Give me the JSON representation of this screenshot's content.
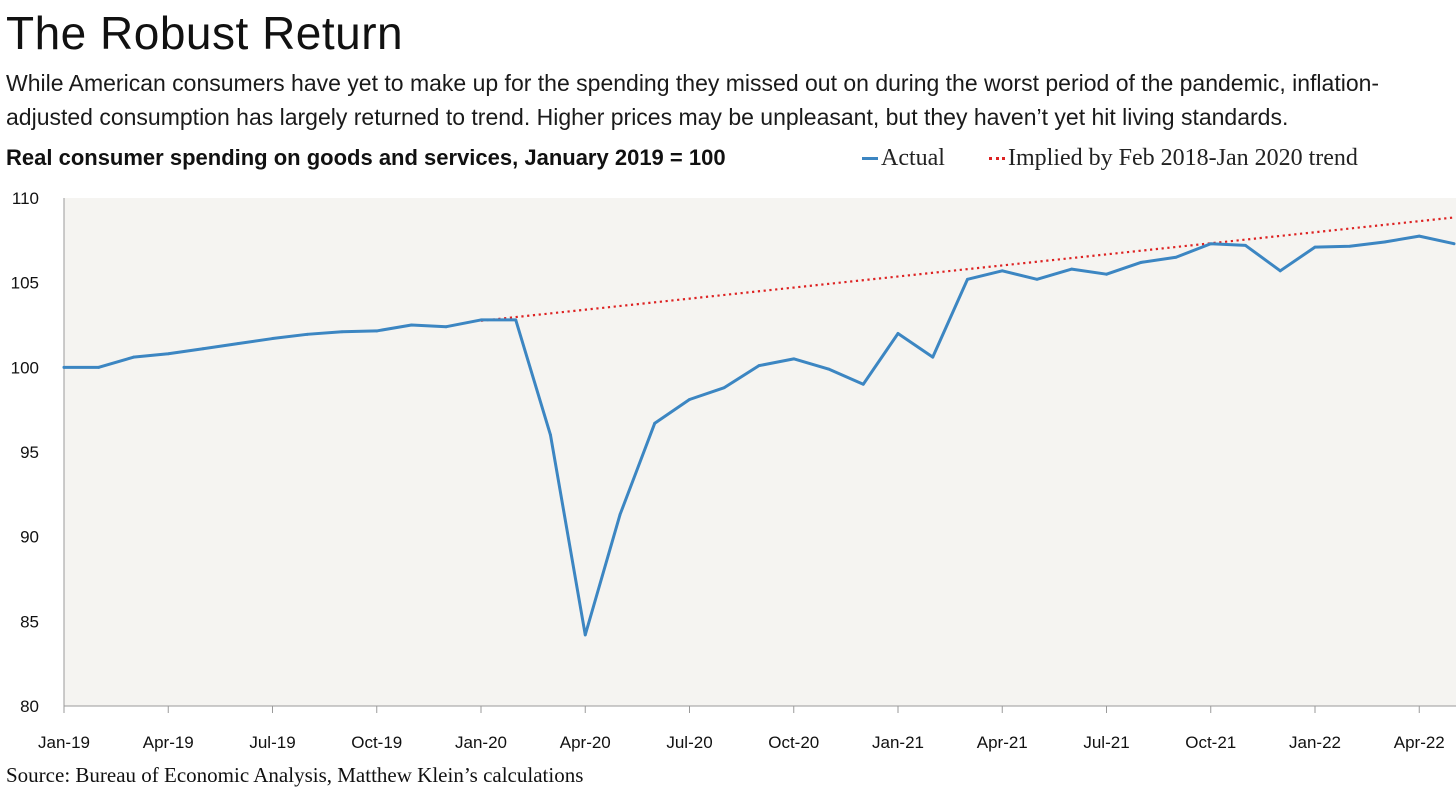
{
  "title": "The Robust Return",
  "subtitle": "While American consumers have yet to make up for the spending they missed out on during the worst period of the pandemic, inflation-adjusted consumption has largely returned to trend. Higher prices may be unpleasant, but they haven’t yet hit living standards.",
  "source": "Source: Bureau of Economic Analysis, Matthew Klein’s calculations",
  "colors": {
    "actual": "#3c86c2",
    "trend": "#dd2222",
    "plot_background": "#f5f4f1"
  },
  "chart_data": {
    "type": "line",
    "title": "Real consumer spending on goods and services, January 2019 = 100",
    "xlabel": "",
    "ylabel": "",
    "ylim": [
      80,
      110
    ],
    "yticks": [
      80,
      85,
      90,
      95,
      100,
      105,
      110
    ],
    "xtick_labels": [
      "Jan-19",
      "Apr-19",
      "Jul-19",
      "Oct-19",
      "Jan-20",
      "Apr-20",
      "Jul-20",
      "Oct-20",
      "Jan-21",
      "Apr-21",
      "Jul-21",
      "Oct-21",
      "Jan-22",
      "Apr-22"
    ],
    "grid": false,
    "legend_position": "top-right",
    "x": [
      "Jan-19",
      "Feb-19",
      "Mar-19",
      "Apr-19",
      "May-19",
      "Jun-19",
      "Jul-19",
      "Aug-19",
      "Sep-19",
      "Oct-19",
      "Nov-19",
      "Dec-19",
      "Jan-20",
      "Feb-20",
      "Mar-20",
      "Apr-20",
      "May-20",
      "Jun-20",
      "Jul-20",
      "Aug-20",
      "Sep-20",
      "Oct-20",
      "Nov-20",
      "Dec-20",
      "Jan-21",
      "Feb-21",
      "Mar-21",
      "Apr-21",
      "May-21",
      "Jun-21",
      "Jul-21",
      "Aug-21",
      "Sep-21",
      "Oct-21",
      "Nov-21",
      "Dec-21",
      "Jan-22",
      "Feb-22",
      "Mar-22",
      "Apr-22",
      "May-22"
    ],
    "series": [
      {
        "name": "Actual",
        "style": "solid",
        "values": [
          100.0,
          100.0,
          100.6,
          100.8,
          101.1,
          101.4,
          101.7,
          101.95,
          102.1,
          102.15,
          102.5,
          102.4,
          102.8,
          102.8,
          96.0,
          84.2,
          91.3,
          96.7,
          98.1,
          98.8,
          100.1,
          100.5,
          99.9,
          99.0,
          102.0,
          100.6,
          105.2,
          105.7,
          105.2,
          105.8,
          105.5,
          106.2,
          106.5,
          107.3,
          107.2,
          105.7,
          107.1,
          107.15,
          107.4,
          107.75,
          107.3
        ]
      },
      {
        "name": "Implied by Feb 2018-Jan 2020 trend",
        "style": "dotted",
        "x": [
          "Jan-20",
          "May-22"
        ],
        "values": [
          102.75,
          108.85
        ]
      }
    ]
  }
}
